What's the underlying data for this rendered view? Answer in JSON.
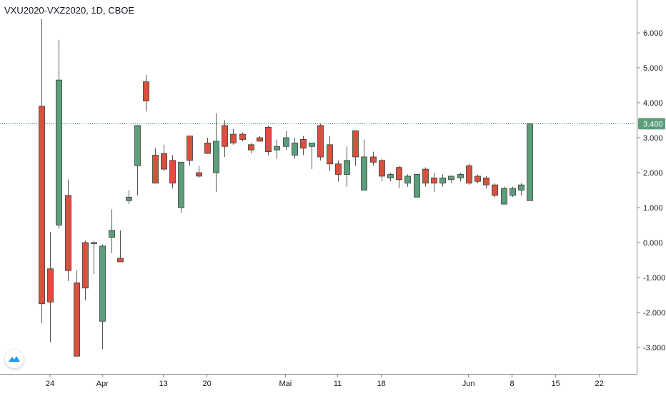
{
  "header": {
    "symbol_title": "VXU2020-VXZ2020, 1D, CBOE"
  },
  "colors": {
    "up": "#5c9e7b",
    "down": "#d9503c",
    "wick": "#555555",
    "price_line": "#1e7a5e",
    "axis_text": "#131722",
    "axis_line": "#888888",
    "badge": "#5c9e7b"
  },
  "icons": {
    "logo": "tradingview-logo-icon"
  },
  "chart_data": {
    "type": "candlestick",
    "title": "VXU2020-VXZ2020, 1D, CBOE",
    "ylim": [
      -3.6,
      7.0
    ],
    "y_ticks": [
      "6.000",
      "5.000",
      "4.000",
      "3.000",
      "2.000",
      "1.000",
      "0.000",
      "-1.000",
      "-2.000",
      "-3.000"
    ],
    "y_tick_values": [
      6,
      5,
      4,
      3,
      2,
      1,
      0,
      -1,
      -2,
      -3
    ],
    "x_ticks": [
      {
        "label": "24",
        "index": 0
      },
      {
        "label": "Apr",
        "index": 6
      },
      {
        "label": "13",
        "index": 13
      },
      {
        "label": "20",
        "index": 18
      },
      {
        "label": "Mai",
        "index": 27
      },
      {
        "label": "11",
        "index": 33
      },
      {
        "label": "18",
        "index": 38
      },
      {
        "label": "Jun",
        "index": 48
      },
      {
        "label": "8",
        "index": 53
      },
      {
        "label": "15",
        "index": 58
      },
      {
        "label": "22",
        "index": 63
      }
    ],
    "last_price": 3.4,
    "last_price_label": "3.400",
    "grid": false,
    "candles": [
      {
        "o": 3.9,
        "h": 6.4,
        "l": -2.3,
        "c": -1.75
      },
      {
        "o": -0.75,
        "h": 0.3,
        "l": -2.85,
        "c": -1.7
      },
      {
        "o": 0.5,
        "h": 5.8,
        "l": 0.4,
        "c": 4.65
      },
      {
        "o": 1.35,
        "h": 1.8,
        "l": -1.1,
        "c": -0.8
      },
      {
        "o": -1.15,
        "h": -0.8,
        "l": -3.25,
        "c": -3.25
      },
      {
        "o": 0.0,
        "h": 0.05,
        "l": -1.65,
        "c": -1.3
      },
      {
        "o": 0.0,
        "h": 0.05,
        "l": -0.9,
        "c": 0.0
      },
      {
        "o": -2.25,
        "h": -0.05,
        "l": -3.05,
        "c": -0.1
      },
      {
        "o": 0.15,
        "h": 0.95,
        "l": -0.3,
        "c": 0.35
      },
      {
        "o": -0.45,
        "h": 0.35,
        "l": -0.55,
        "c": -0.55
      },
      {
        "o": 1.2,
        "h": 1.5,
        "l": 1.1,
        "c": 1.3
      },
      {
        "o": 2.2,
        "h": 3.35,
        "l": 1.35,
        "c": 3.35
      },
      {
        "o": 4.6,
        "h": 4.8,
        "l": 3.75,
        "c": 4.05
      },
      {
        "o": 2.5,
        "h": 2.7,
        "l": 1.7,
        "c": 1.7
      },
      {
        "o": 2.55,
        "h": 2.8,
        "l": 2.05,
        "c": 2.1
      },
      {
        "o": 2.35,
        "h": 2.5,
        "l": 1.55,
        "c": 1.7
      },
      {
        "o": 1.0,
        "h": 2.3,
        "l": 0.85,
        "c": 2.3
      },
      {
        "o": 3.05,
        "h": 3.05,
        "l": 2.2,
        "c": 2.35
      },
      {
        "o": 2.0,
        "h": 2.2,
        "l": 1.85,
        "c": 1.9
      },
      {
        "o": 2.85,
        "h": 3.0,
        "l": 2.55,
        "c": 2.55
      },
      {
        "o": 2.0,
        "h": 3.7,
        "l": 1.45,
        "c": 2.9
      },
      {
        "o": 3.35,
        "h": 3.5,
        "l": 2.45,
        "c": 2.75
      },
      {
        "o": 3.1,
        "h": 3.25,
        "l": 2.8,
        "c": 2.85
      },
      {
        "o": 3.1,
        "h": 3.15,
        "l": 2.9,
        "c": 2.95
      },
      {
        "o": 2.8,
        "h": 2.85,
        "l": 2.55,
        "c": 2.65
      },
      {
        "o": 3.0,
        "h": 3.05,
        "l": 2.9,
        "c": 2.9
      },
      {
        "o": 3.3,
        "h": 3.35,
        "l": 2.5,
        "c": 2.6
      },
      {
        "o": 2.65,
        "h": 2.95,
        "l": 2.4,
        "c": 2.75
      },
      {
        "o": 2.75,
        "h": 3.2,
        "l": 2.65,
        "c": 3.0
      },
      {
        "o": 2.5,
        "h": 3.0,
        "l": 2.4,
        "c": 2.85
      },
      {
        "o": 2.95,
        "h": 3.05,
        "l": 2.5,
        "c": 2.7
      },
      {
        "o": 2.75,
        "h": 2.85,
        "l": 2.1,
        "c": 2.85
      },
      {
        "o": 3.35,
        "h": 3.4,
        "l": 2.35,
        "c": 2.45
      },
      {
        "o": 2.8,
        "h": 3.05,
        "l": 2.05,
        "c": 2.25
      },
      {
        "o": 2.25,
        "h": 2.35,
        "l": 1.75,
        "c": 1.95
      },
      {
        "o": 1.95,
        "h": 2.75,
        "l": 1.6,
        "c": 2.35
      },
      {
        "o": 3.2,
        "h": 3.2,
        "l": 2.2,
        "c": 2.45
      },
      {
        "o": 1.5,
        "h": 2.95,
        "l": 1.5,
        "c": 2.45
      },
      {
        "o": 2.45,
        "h": 2.6,
        "l": 2.2,
        "c": 2.3
      },
      {
        "o": 2.35,
        "h": 2.4,
        "l": 1.75,
        "c": 1.9
      },
      {
        "o": 1.85,
        "h": 2.0,
        "l": 1.75,
        "c": 1.95
      },
      {
        "o": 2.15,
        "h": 2.2,
        "l": 1.55,
        "c": 1.8
      },
      {
        "o": 1.7,
        "h": 1.95,
        "l": 1.6,
        "c": 1.9
      },
      {
        "o": 1.3,
        "h": 1.95,
        "l": 1.3,
        "c": 1.95
      },
      {
        "o": 2.1,
        "h": 2.15,
        "l": 1.6,
        "c": 1.7
      },
      {
        "o": 1.85,
        "h": 2.0,
        "l": 1.45,
        "c": 1.7
      },
      {
        "o": 1.7,
        "h": 1.95,
        "l": 1.6,
        "c": 1.85
      },
      {
        "o": 1.8,
        "h": 1.9,
        "l": 1.7,
        "c": 1.9
      },
      {
        "o": 1.85,
        "h": 2.0,
        "l": 1.75,
        "c": 1.95
      },
      {
        "o": 2.2,
        "h": 2.25,
        "l": 1.65,
        "c": 1.7
      },
      {
        "o": 1.9,
        "h": 1.95,
        "l": 1.7,
        "c": 1.75
      },
      {
        "o": 1.85,
        "h": 1.9,
        "l": 1.55,
        "c": 1.65
      },
      {
        "o": 1.65,
        "h": 1.7,
        "l": 1.3,
        "c": 1.35
      },
      {
        "o": 1.1,
        "h": 1.6,
        "l": 1.1,
        "c": 1.55
      },
      {
        "o": 1.35,
        "h": 1.6,
        "l": 1.3,
        "c": 1.55
      },
      {
        "o": 1.5,
        "h": 1.7,
        "l": 1.35,
        "c": 1.65
      },
      {
        "o": 1.2,
        "h": 3.4,
        "l": 1.2,
        "c": 3.4
      }
    ]
  }
}
